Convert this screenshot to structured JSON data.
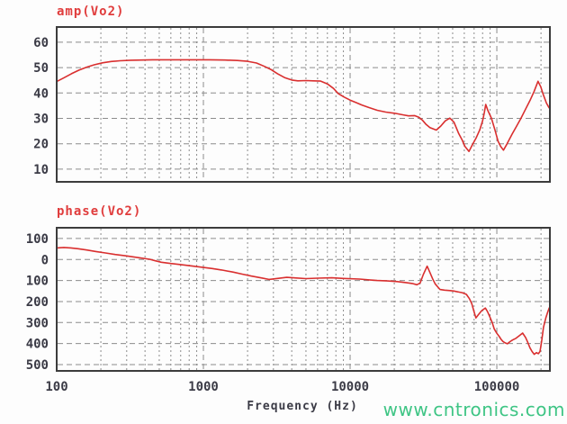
{
  "xlabel": "Frequency (Hz)",
  "watermark": {
    "text": "www.cntronics.com",
    "color": "#3fc585"
  },
  "colors": {
    "curve": "#d92f2f",
    "title": "#e03c3c",
    "grid": "#8c8c8c",
    "frame": "#3c3c3c",
    "tick_text": "#3b3b46"
  },
  "chart_data": [
    {
      "type": "line",
      "title": "amp(Vo2)",
      "x_scale": "log",
      "xlim": [
        100,
        230000
      ],
      "ylim": [
        5,
        66
      ],
      "x_ticks": [
        100,
        1000,
        10000,
        100000
      ],
      "x_tick_labels": [
        "100",
        "1000",
        "10000",
        "100000"
      ],
      "y_ticks": [
        60,
        50,
        40,
        30,
        20,
        10
      ],
      "y_tick_labels": [
        "60",
        "50",
        "40",
        "30",
        "20",
        "10"
      ],
      "grid": true,
      "series": [
        {
          "name": "amp(Vo2)",
          "color": "#d92f2f",
          "points": [
            [
              100,
              44.5
            ],
            [
              112,
              46
            ],
            [
              126,
              47.6
            ],
            [
              142,
              49
            ],
            [
              160,
              50.2
            ],
            [
              180,
              51.1
            ],
            [
              205,
              51.9
            ],
            [
              235,
              52.4
            ],
            [
              270,
              52.7
            ],
            [
              320,
              52.9
            ],
            [
              380,
              53
            ],
            [
              450,
              53.1
            ],
            [
              550,
              53.1
            ],
            [
              700,
              53.1
            ],
            [
              900,
              53.1
            ],
            [
              1100,
              53.1
            ],
            [
              1400,
              53
            ],
            [
              1700,
              52.8
            ],
            [
              2000,
              52.5
            ],
            [
              2300,
              51.8
            ],
            [
              2600,
              50.5
            ],
            [
              2900,
              49.2
            ],
            [
              3200,
              47.6
            ],
            [
              3600,
              46
            ],
            [
              4000,
              45.1
            ],
            [
              4400,
              44.8
            ],
            [
              5000,
              44.9
            ],
            [
              5600,
              44.8
            ],
            [
              6300,
              44.7
            ],
            [
              7000,
              43.6
            ],
            [
              7700,
              41.8
            ],
            [
              8300,
              39.8
            ],
            [
              9100,
              38.4
            ],
            [
              10000,
              37.2
            ],
            [
              11000,
              36.2
            ],
            [
              12000,
              35.3
            ],
            [
              13400,
              34.3
            ],
            [
              15300,
              33.2
            ],
            [
              17500,
              32.5
            ],
            [
              20300,
              32
            ],
            [
              23000,
              31.4
            ],
            [
              25000,
              31
            ],
            [
              27500,
              31.1
            ],
            [
              29500,
              30.4
            ],
            [
              31000,
              29.4
            ],
            [
              33000,
              27.6
            ],
            [
              35000,
              26.4
            ],
            [
              38700,
              25.4
            ],
            [
              41500,
              27
            ],
            [
              44500,
              29
            ],
            [
              47800,
              30.1
            ],
            [
              51000,
              28.5
            ],
            [
              55000,
              24
            ],
            [
              58000,
              21.5
            ],
            [
              60500,
              19
            ],
            [
              64600,
              17
            ],
            [
              68000,
              19.5
            ],
            [
              72500,
              22.5
            ],
            [
              76500,
              25.5
            ],
            [
              80000,
              29
            ],
            [
              82000,
              32
            ],
            [
              84000,
              35.5
            ],
            [
              87000,
              33
            ],
            [
              92000,
              30
            ],
            [
              97000,
              25.5
            ],
            [
              102000,
              21
            ],
            [
              106000,
              19
            ],
            [
              111000,
              17.5
            ],
            [
              117000,
              19.8
            ],
            [
              127000,
              23.8
            ],
            [
              136000,
              26.8
            ],
            [
              146000,
              30
            ],
            [
              156000,
              33.3
            ],
            [
              168000,
              37
            ],
            [
              179000,
              40.5
            ],
            [
              191000,
              44.6
            ],
            [
              199000,
              42.5
            ],
            [
              207000,
              39.5
            ],
            [
              218000,
              36
            ],
            [
              228000,
              34
            ]
          ]
        }
      ]
    },
    {
      "type": "line",
      "title": "phase(Vo2)",
      "x_scale": "log",
      "xlim": [
        100,
        230000
      ],
      "ylim": [
        -530,
        151
      ],
      "x_ticks": [
        100,
        1000,
        10000,
        100000
      ],
      "x_tick_labels": [
        "100",
        "1000",
        "10000",
        "100000"
      ],
      "y_ticks": [
        100,
        0,
        -100,
        -200,
        -300,
        -400,
        -500
      ],
      "y_tick_labels": [
        "100",
        "0",
        "100",
        "200",
        "300",
        "400",
        "500"
      ],
      "grid": true,
      "series": [
        {
          "name": "phase(Vo2)",
          "color": "#d92f2f",
          "points": [
            [
              100,
              55
            ],
            [
              112,
              57
            ],
            [
              125,
              55
            ],
            [
              140,
              51
            ],
            [
              160,
              45
            ],
            [
              185,
              38
            ],
            [
              215,
              31
            ],
            [
              250,
              24
            ],
            [
              300,
              17
            ],
            [
              360,
              9
            ],
            [
              430,
              1
            ],
            [
              470,
              -6
            ],
            [
              516,
              -13
            ],
            [
              600,
              -19
            ],
            [
              700,
              -24
            ],
            [
              821,
              -30
            ],
            [
              1000,
              -38
            ],
            [
              1150,
              -43
            ],
            [
              1330,
              -50
            ],
            [
              1600,
              -60
            ],
            [
              1850,
              -70
            ],
            [
              2130,
              -79
            ],
            [
              2500,
              -88
            ],
            [
              2800,
              -95
            ],
            [
              3200,
              -90
            ],
            [
              3700,
              -85
            ],
            [
              4300,
              -88
            ],
            [
              5000,
              -91
            ],
            [
              6000,
              -89
            ],
            [
              7500,
              -87
            ],
            [
              9000,
              -90
            ],
            [
              11600,
              -93
            ],
            [
              13500,
              -97
            ],
            [
              15300,
              -100
            ],
            [
              18000,
              -102
            ],
            [
              21000,
              -105
            ],
            [
              24000,
              -110
            ],
            [
              26500,
              -114
            ],
            [
              28500,
              -120
            ],
            [
              30000,
              -112
            ],
            [
              31500,
              -72
            ],
            [
              33500,
              -32
            ],
            [
              35000,
              -62
            ],
            [
              36500,
              -92
            ],
            [
              38000,
              -116
            ],
            [
              41000,
              -143
            ],
            [
              44000,
              -146
            ],
            [
              48000,
              -148
            ],
            [
              51000,
              -150
            ],
            [
              55000,
              -155
            ],
            [
              58000,
              -158
            ],
            [
              62000,
              -166
            ],
            [
              65000,
              -186
            ],
            [
              67500,
              -210
            ],
            [
              70000,
              -250
            ],
            [
              72000,
              -278
            ],
            [
              75000,
              -262
            ],
            [
              79000,
              -243
            ],
            [
              83500,
              -231
            ],
            [
              86500,
              -249
            ],
            [
              89500,
              -272
            ],
            [
              93000,
              -300
            ],
            [
              96000,
              -330
            ],
            [
              100000,
              -351
            ],
            [
              103500,
              -365
            ],
            [
              107000,
              -380
            ],
            [
              110000,
              -390
            ],
            [
              114000,
              -397
            ],
            [
              118000,
              -401
            ],
            [
              123000,
              -391
            ],
            [
              128000,
              -383
            ],
            [
              135000,
              -375
            ],
            [
              142000,
              -363
            ],
            [
              150000,
              -350
            ],
            [
              157000,
              -371
            ],
            [
              162000,
              -392
            ],
            [
              168000,
              -420
            ],
            [
              174000,
              -438
            ],
            [
              180000,
              -451
            ],
            [
              186000,
              -443
            ],
            [
              192000,
              -448
            ],
            [
              197000,
              -438
            ],
            [
              202000,
              -390
            ],
            [
              208000,
              -322
            ],
            [
              216000,
              -276
            ],
            [
              222000,
              -251
            ],
            [
              228000,
              -229
            ]
          ]
        }
      ]
    }
  ]
}
